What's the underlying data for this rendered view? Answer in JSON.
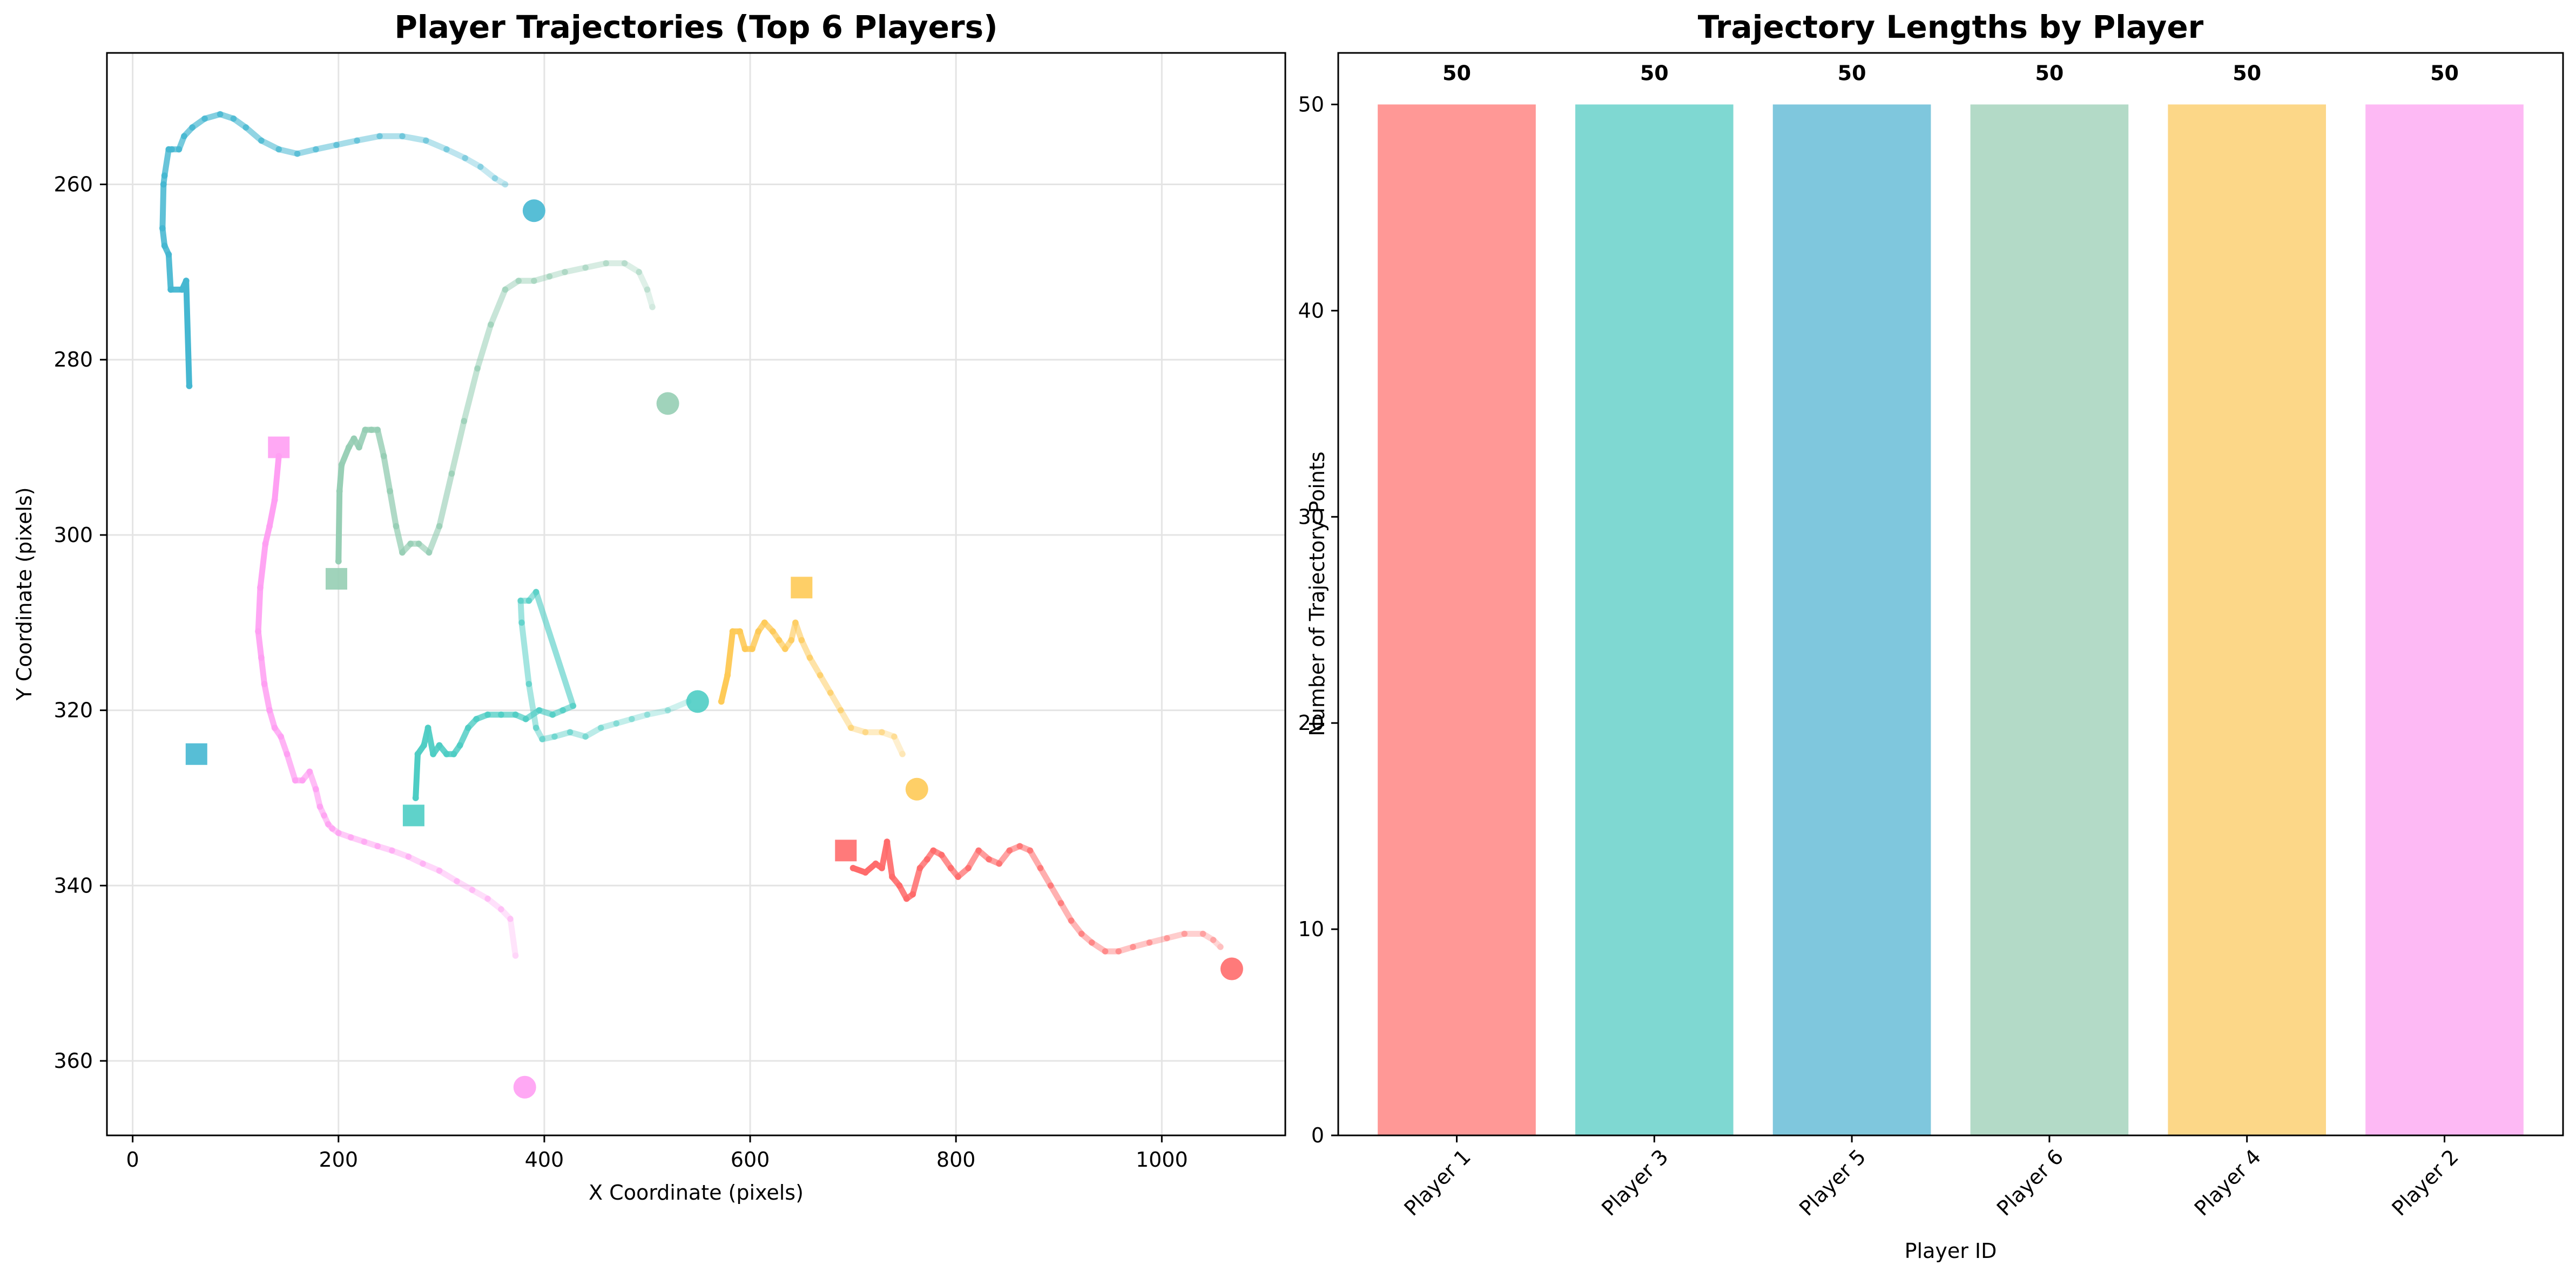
{
  "chart_data": [
    {
      "type": "line",
      "title": "Player Trajectories (Top 6 Players)",
      "xlabel": "X Coordinate (pixels)",
      "ylabel": "Y Coordinate (pixels)",
      "xlim": [
        -25,
        1120
      ],
      "ylim": [
        368.5,
        245
      ],
      "y_inverted": true,
      "grid": true,
      "xticks": [
        0,
        200,
        400,
        600,
        800,
        1000
      ],
      "yticks": [
        260,
        280,
        300,
        320,
        340,
        360
      ],
      "start_marker": "square",
      "end_marker": "circle",
      "series": [
        {
          "color": "#FF6B6B",
          "points": [
            [
              700,
              338
            ],
            [
              712,
              338.5
            ],
            [
              722,
              337.5
            ],
            [
              728,
              338
            ],
            [
              733,
              335
            ],
            [
              738,
              339
            ],
            [
              745,
              340
            ],
            [
              752,
              341.5
            ],
            [
              758,
              341
            ],
            [
              765,
              338
            ],
            [
              772,
              337
            ],
            [
              778,
              336
            ],
            [
              786,
              336.5
            ],
            [
              795,
              338
            ],
            [
              802,
              339
            ],
            [
              812,
              338
            ],
            [
              822,
              336
            ],
            [
              832,
              337
            ],
            [
              842,
              337.5
            ],
            [
              852,
              336
            ],
            [
              862,
              335.5
            ],
            [
              872,
              336
            ],
            [
              882,
              338
            ],
            [
              892,
              340
            ],
            [
              902,
              342
            ],
            [
              912,
              344
            ],
            [
              922,
              345.5
            ],
            [
              932,
              346.5
            ],
            [
              945,
              347.5
            ],
            [
              958,
              347.5
            ],
            [
              972,
              347
            ],
            [
              988,
              346.5
            ],
            [
              1005,
              346
            ],
            [
              1022,
              345.5
            ],
            [
              1040,
              345.5
            ],
            [
              1050,
              346.2
            ],
            [
              1057,
              347
            ]
          ],
          "start": [
            693,
            336
          ],
          "end": [
            1068,
            349.5
          ]
        },
        {
          "color": "#4ECDC4",
          "points": [
            [
              275,
              330
            ],
            [
              277,
              325
            ],
            [
              283,
              324
            ],
            [
              287,
              322
            ],
            [
              292,
              325
            ],
            [
              298,
              324
            ],
            [
              305,
              325
            ],
            [
              312,
              325
            ],
            [
              318,
              324
            ],
            [
              326,
              322
            ],
            [
              334,
              321
            ],
            [
              345,
              320.5
            ],
            [
              358,
              320.5
            ],
            [
              372,
              320.5
            ],
            [
              382,
              321
            ],
            [
              395,
              320
            ],
            [
              408,
              320.5
            ],
            [
              418,
              320
            ],
            [
              428,
              319.5
            ],
            [
              392,
              306.5
            ],
            [
              385,
              307.5
            ],
            [
              377,
              307.5
            ],
            [
              378,
              310
            ],
            [
              385,
              317
            ],
            [
              392,
              322
            ],
            [
              398,
              323.3
            ],
            [
              410,
              323
            ],
            [
              425,
              322.5
            ],
            [
              440,
              323
            ],
            [
              455,
              322
            ],
            [
              470,
              321.5
            ],
            [
              485,
              321
            ],
            [
              500,
              320.5
            ],
            [
              520,
              320
            ],
            [
              540,
              319
            ]
          ],
          "start": [
            273,
            332
          ],
          "end": [
            549,
            319
          ]
        },
        {
          "color": "#45B7D1",
          "points": [
            [
              55,
              283
            ],
            [
              52,
              271
            ],
            [
              48,
              272
            ],
            [
              37,
              272
            ],
            [
              35,
              268
            ],
            [
              31,
              267
            ],
            [
              29,
              265
            ],
            [
              30,
              260
            ],
            [
              31,
              259
            ],
            [
              35,
              256
            ],
            [
              38,
              256
            ],
            [
              45,
              256
            ],
            [
              50,
              254.5
            ],
            [
              58,
              253.5
            ],
            [
              70,
              252.5
            ],
            [
              85,
              252
            ],
            [
              98,
              252.5
            ],
            [
              110,
              253.5
            ],
            [
              125,
              255
            ],
            [
              142,
              256
            ],
            [
              160,
              256.5
            ],
            [
              178,
              256
            ],
            [
              198,
              255.5
            ],
            [
              218,
              255
            ],
            [
              240,
              254.5
            ],
            [
              262,
              254.5
            ],
            [
              285,
              255
            ],
            [
              305,
              256
            ],
            [
              323,
              257
            ],
            [
              338,
              258
            ],
            [
              352,
              259.3
            ],
            [
              362,
              260
            ]
          ],
          "start": [
            62,
            325
          ],
          "end": [
            390,
            263
          ]
        },
        {
          "color": "#96CEB4",
          "points": [
            [
              200,
              303
            ],
            [
              201,
              295
            ],
            [
              203,
              292
            ],
            [
              210,
              290
            ],
            [
              215,
              289
            ],
            [
              220,
              290
            ],
            [
              226,
              288
            ],
            [
              232,
              288
            ],
            [
              238,
              288
            ],
            [
              244,
              291
            ],
            [
              250,
              295
            ],
            [
              256,
              299
            ],
            [
              262,
              302
            ],
            [
              270,
              301
            ],
            [
              278,
              301
            ],
            [
              288,
              302
            ],
            [
              298,
              299
            ],
            [
              310,
              293
            ],
            [
              322,
              287
            ],
            [
              335,
              281
            ],
            [
              348,
              276
            ],
            [
              362,
              272
            ],
            [
              375,
              271
            ],
            [
              390,
              271
            ],
            [
              405,
              270.5
            ],
            [
              420,
              270
            ],
            [
              440,
              269.5
            ],
            [
              460,
              269
            ],
            [
              478,
              269
            ],
            [
              492,
              270
            ],
            [
              500,
              272
            ],
            [
              505,
              274
            ]
          ],
          "start": [
            198,
            305
          ],
          "end": [
            520,
            285
          ]
        },
        {
          "color": "#FECA57",
          "points": [
            [
              572,
              319
            ],
            [
              578,
              316
            ],
            [
              583,
              311
            ],
            [
              590,
              311
            ],
            [
              595,
              313
            ],
            [
              602,
              313
            ],
            [
              608,
              311
            ],
            [
              614,
              310
            ],
            [
              622,
              311
            ],
            [
              628,
              312
            ],
            [
              634,
              313
            ],
            [
              640,
              312
            ],
            [
              644,
              310
            ],
            [
              650,
              312
            ],
            [
              658,
              314
            ],
            [
              668,
              316
            ],
            [
              678,
              318
            ],
            [
              688,
              320
            ],
            [
              698,
              322
            ],
            [
              712,
              322.5
            ],
            [
              728,
              322.5
            ],
            [
              740,
              323
            ],
            [
              748,
              325
            ]
          ],
          "start": [
            650,
            306
          ],
          "end": [
            762,
            329
          ]
        },
        {
          "color": "#FF9FF3",
          "points": [
            [
              142,
              291
            ],
            [
              138,
              296
            ],
            [
              133,
              299
            ],
            [
              129,
              301
            ],
            [
              124,
              306
            ],
            [
              122,
              311
            ],
            [
              125,
              314
            ],
            [
              128,
              317
            ],
            [
              133,
              320
            ],
            [
              138,
              322
            ],
            [
              144,
              323
            ],
            [
              150,
              325
            ],
            [
              158,
              328
            ],
            [
              165,
              328
            ],
            [
              172,
              327
            ],
            [
              178,
              329
            ],
            [
              182,
              331
            ],
            [
              186,
              332
            ],
            [
              190,
              333
            ],
            [
              194,
              333.5
            ],
            [
              200,
              334
            ],
            [
              212,
              334.5
            ],
            [
              225,
              335
            ],
            [
              238,
              335.5
            ],
            [
              252,
              336
            ],
            [
              268,
              336.7
            ],
            [
              282,
              337.5
            ],
            [
              298,
              338.3
            ],
            [
              315,
              339.5
            ],
            [
              330,
              340.5
            ],
            [
              345,
              341.5
            ],
            [
              358,
              342.7
            ],
            [
              367,
              343.8
            ],
            [
              372,
              348
            ]
          ],
          "start": [
            142,
            290
          ],
          "end": [
            381,
            363
          ]
        }
      ]
    },
    {
      "type": "bar",
      "title": "Trajectory Lengths by Player",
      "xlabel": "Player ID",
      "ylabel": "Number of Trajectory Points",
      "categories": [
        "Player 1",
        "Player 3",
        "Player 5",
        "Player 6",
        "Player 4",
        "Player 2"
      ],
      "values": [
        50,
        50,
        50,
        50,
        50,
        50
      ],
      "data_labels": [
        "50",
        "50",
        "50",
        "50",
        "50",
        "50"
      ],
      "colors": [
        "#FF9896",
        "#7FD8D2",
        "#7FC7DD",
        "#B3DAC7",
        "#FCD788",
        "#FDB9F4"
      ],
      "ylim": [
        0,
        52.5
      ],
      "yticks": [
        0,
        10,
        20,
        30,
        40,
        50
      ],
      "grid": false
    }
  ]
}
